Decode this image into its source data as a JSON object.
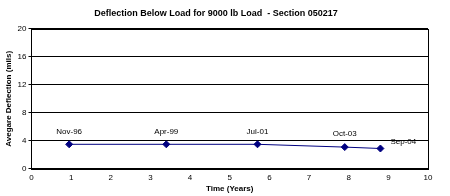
{
  "chart_data": {
    "type": "line",
    "title": "Deflection Below Load for 9000 lb Load  - Section 050217",
    "x_label": "Time (Years)",
    "y_label": "Avegare Deflection (mils)",
    "x": [
      0.95,
      3.4,
      5.7,
      7.9,
      8.8
    ],
    "values": [
      3.5,
      3.5,
      3.5,
      3.1,
      2.9
    ],
    "annotations": [
      "Nov-96",
      "Apr-99",
      "Jul-01",
      "Oct-03",
      "Sep-04"
    ],
    "color": "#000080",
    "marker": "diamond",
    "line_style": "solid",
    "xlim": [
      0,
      10
    ],
    "xticks": [
      0,
      1,
      2,
      3,
      4,
      5,
      6,
      7,
      8,
      9,
      10
    ],
    "ylim": [
      0,
      20
    ],
    "yticks": [
      0,
      4,
      8,
      12,
      16,
      20
    ],
    "grid": "y"
  }
}
